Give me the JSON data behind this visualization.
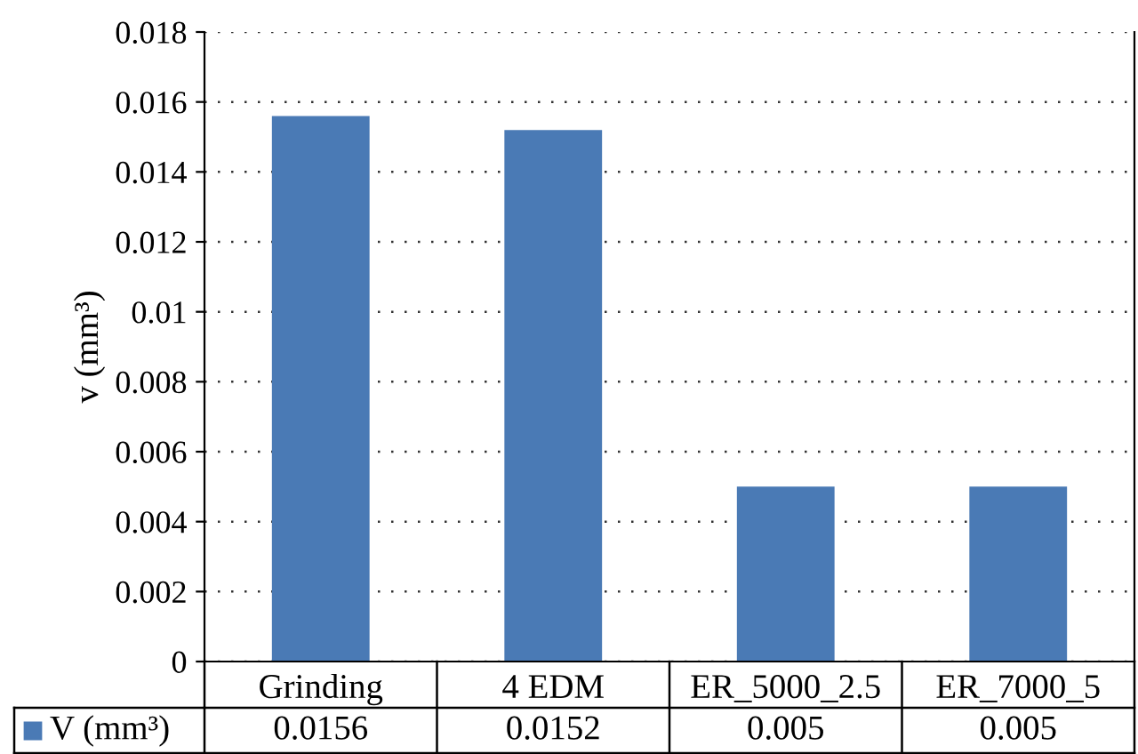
{
  "chart_data": {
    "type": "bar",
    "categories": [
      "Grinding",
      "4 EDM",
      "ER_5000_2.5",
      "ER_7000_5"
    ],
    "series": [
      {
        "name": "V (mm³)",
        "color": "#4a7ab5",
        "values": [
          0.0156,
          0.0152,
          0.005,
          0.005
        ]
      }
    ],
    "ylabel": "v (mm³)",
    "ylim": [
      0,
      0.018
    ],
    "yticks": [
      0,
      0.002,
      0.004,
      0.006,
      0.008,
      0.01,
      0.012,
      0.014,
      0.016,
      0.018
    ],
    "grid": "y",
    "data_labels": true
  }
}
